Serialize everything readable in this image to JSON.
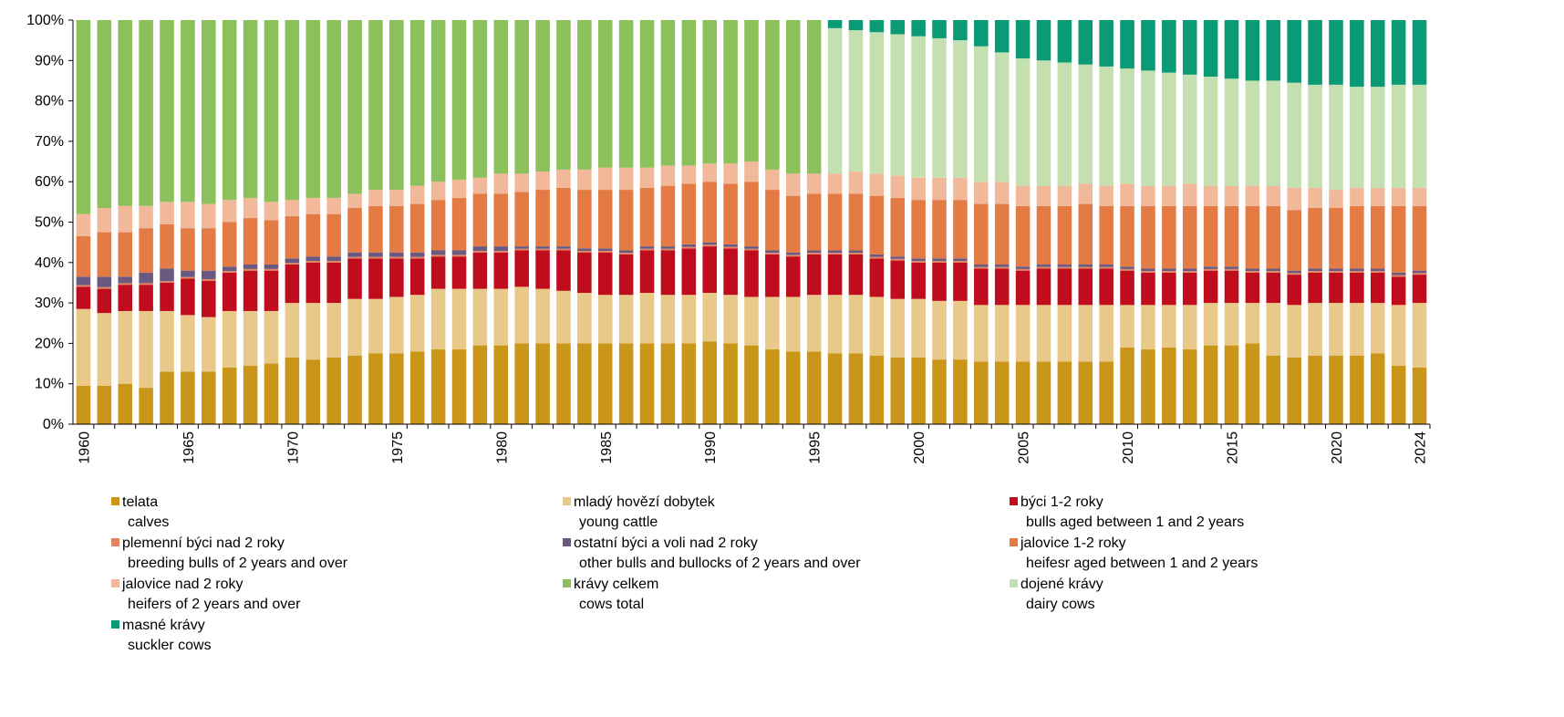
{
  "chart_data": {
    "type": "stacked_bar",
    "categories": [
      1960,
      null,
      null,
      null,
      null,
      1965,
      null,
      null,
      null,
      null,
      1970,
      null,
      null,
      null,
      null,
      1975,
      null,
      null,
      null,
      null,
      1980,
      null,
      null,
      null,
      null,
      1985,
      null,
      null,
      null,
      null,
      1990,
      null,
      null,
      null,
      null,
      1995,
      null,
      null,
      null,
      null,
      2000,
      null,
      null,
      null,
      null,
      2005,
      null,
      null,
      null,
      null,
      2010,
      null,
      null,
      null,
      null,
      2015,
      null,
      null,
      null,
      null,
      2020,
      null,
      null,
      null,
      2024
    ],
    "ylim": [
      0,
      100
    ],
    "yticks": [
      {
        "value": 0,
        "label": "0%"
      },
      {
        "value": 10,
        "label": "10%"
      },
      {
        "value": 20,
        "label": "20%"
      },
      {
        "value": 30,
        "label": "30%"
      },
      {
        "value": 40,
        "label": "40%"
      },
      {
        "value": 50,
        "label": "50%"
      },
      {
        "value": 60,
        "label": "60%"
      },
      {
        "value": 70,
        "label": "70%"
      },
      {
        "value": 80,
        "label": "80%"
      },
      {
        "value": 90,
        "label": "90%"
      },
      {
        "value": 100,
        "label": "100%"
      }
    ],
    "series": [
      {
        "name": "telata",
        "name_en": "calves",
        "color": "#c9961a",
        "values": [
          9.5,
          9.5,
          10,
          9,
          13,
          13,
          13,
          14,
          14.5,
          15,
          16.5,
          16,
          16.5,
          17,
          17.5,
          17.5,
          18,
          18.5,
          18.5,
          19.5,
          19.5,
          20,
          20,
          20,
          20,
          20,
          20,
          20,
          20,
          20,
          20.5,
          20,
          19.5,
          18.5,
          18,
          18,
          17.5,
          17.5,
          17,
          16.5,
          16.5,
          16,
          16,
          15.5,
          15.5,
          15.5,
          15.5,
          15.5,
          15.5,
          15.5,
          19,
          18.5,
          19,
          18.5,
          19.5,
          19.5,
          20,
          17,
          16.5,
          17,
          17,
          17,
          17.5,
          14.5,
          14
        ]
      },
      {
        "name": "mladý hovězí dobytek",
        "name_en": "young cattle",
        "color": "#e8c98a",
        "values": [
          19,
          18,
          18,
          19,
          15,
          14,
          13.5,
          14,
          13.5,
          13,
          13.5,
          14,
          13.5,
          14,
          13.5,
          14,
          14,
          15,
          15,
          14,
          14,
          14,
          13.5,
          13,
          12.5,
          12,
          12,
          12.5,
          12,
          12,
          12,
          12,
          12,
          13,
          13.5,
          14,
          14.5,
          14.5,
          14.5,
          14.5,
          14.5,
          14.5,
          14.5,
          14,
          14,
          14,
          14,
          14,
          14,
          14,
          10.5,
          11,
          10.5,
          11,
          10.5,
          10.5,
          10,
          13,
          13,
          13,
          13,
          13,
          12.5,
          15,
          16
        ]
      },
      {
        "name": "býci 1-2 roky",
        "name_en": "bulls aged between 1 and 2 years",
        "color": "#c00d1e",
        "values": [
          5.5,
          6,
          6.5,
          6.5,
          7,
          9,
          9,
          9.5,
          10,
          10,
          9.5,
          10,
          10,
          10,
          10,
          9.5,
          9,
          8,
          8,
          9,
          9,
          9,
          9.5,
          10,
          10,
          10.5,
          10,
          10.5,
          11,
          11.5,
          11.5,
          11.5,
          11.5,
          10.5,
          10,
          10,
          10,
          10,
          9.5,
          9.5,
          9,
          9.5,
          9.5,
          9,
          9,
          8.5,
          9,
          9,
          9,
          9,
          8.5,
          8,
          8,
          8,
          8,
          8,
          7.5,
          7.5,
          7.5,
          7.5,
          7.5,
          7.5,
          7.5,
          7,
          7
        ]
      },
      {
        "name": "plemenní býci nad 2 roky",
        "name_en": "breeding bulls of 2 years and over",
        "color": "#e2845e",
        "values": [
          0.4,
          0.4,
          0.4,
          0.4,
          0.4,
          0.4,
          0.4,
          0.4,
          0.4,
          0.4,
          0.4,
          0.4,
          0.4,
          0.4,
          0.4,
          0.4,
          0.4,
          0.4,
          0.4,
          0.4,
          0.4,
          0.4,
          0.4,
          0.4,
          0.4,
          0.4,
          0.4,
          0.4,
          0.4,
          0.4,
          0.4,
          0.4,
          0.4,
          0.4,
          0.4,
          0.4,
          0.4,
          0.4,
          0.4,
          0.4,
          0.4,
          0.4,
          0.4,
          0.4,
          0.4,
          0.4,
          0.4,
          0.4,
          0.4,
          0.4,
          0.4,
          0.4,
          0.4,
          0.4,
          0.4,
          0.4,
          0.4,
          0.4,
          0.4,
          0.4,
          0.4,
          0.4,
          0.4,
          0.4,
          0.4
        ]
      },
      {
        "name": "ostatní býci a voli nad 2 roky",
        "name_en": "other bulls and bullocks of 2 years and over",
        "color": "#6a5a82",
        "values": [
          2.1,
          2.6,
          1.6,
          2.6,
          3.1,
          1.6,
          2.1,
          1.1,
          1.1,
          1.1,
          1.1,
          1.1,
          1.1,
          1.1,
          1.1,
          1.1,
          1.1,
          1.1,
          1.1,
          1.1,
          1.1,
          0.6,
          0.6,
          0.6,
          0.6,
          0.6,
          0.6,
          0.6,
          0.6,
          0.6,
          0.6,
          0.6,
          0.6,
          0.6,
          0.6,
          0.6,
          0.6,
          0.6,
          0.6,
          0.6,
          0.6,
          0.6,
          0.6,
          0.6,
          0.6,
          0.6,
          0.6,
          0.6,
          0.6,
          0.6,
          0.6,
          0.6,
          0.6,
          0.6,
          0.6,
          0.6,
          0.6,
          0.6,
          0.6,
          0.6,
          0.6,
          0.6,
          0.6,
          0.6,
          0.6
        ]
      },
      {
        "name": "jalovice 1-2 roky",
        "name_en": "heifesr aged between 1 and 2 years",
        "color": "#e47b45",
        "values": [
          10,
          11,
          11,
          11,
          11,
          10.5,
          10.5,
          11,
          11.5,
          11,
          10.5,
          10.5,
          10.5,
          11,
          11.5,
          11.5,
          12,
          12.5,
          13,
          13,
          13,
          13.5,
          14,
          14.5,
          14.5,
          14.5,
          15,
          14.5,
          15,
          15,
          15,
          15,
          16,
          15,
          14,
          14,
          14,
          14,
          14.5,
          14.5,
          14.5,
          14.5,
          14.5,
          15,
          15,
          15,
          14.5,
          14.5,
          15,
          14.5,
          15,
          15.5,
          15.5,
          15.5,
          15,
          15,
          15.5,
          15.5,
          15,
          15,
          15,
          15.5,
          15.5,
          16.5,
          16
        ]
      },
      {
        "name": "jalovice nad 2 roky",
        "name_en": "heifers of 2 years and over",
        "color": "#f1b99a",
        "values": [
          5.5,
          6,
          6.5,
          5.5,
          5.5,
          6.5,
          6,
          5.5,
          5,
          4.5,
          4,
          4,
          4,
          3.5,
          4,
          4,
          4.5,
          4.5,
          4.5,
          4,
          5,
          4.5,
          4.5,
          4.5,
          5,
          5.5,
          5.5,
          5,
          5,
          4.5,
          4.5,
          5,
          5,
          5,
          5.5,
          5,
          5,
          5.5,
          5.5,
          5.5,
          5.5,
          5.5,
          5.5,
          5.5,
          5.5,
          5,
          5,
          5,
          5,
          5,
          5.5,
          5,
          5,
          5.5,
          5,
          5,
          5,
          5,
          5.5,
          5,
          4.5,
          4.5,
          4.5,
          4.5,
          4.5
        ]
      },
      {
        "name": "krávy celkem",
        "name_en": "cows total",
        "color": "#8cc05a",
        "values": [
          48,
          46.5,
          46,
          46,
          45,
          45,
          45.5,
          44.5,
          44,
          45,
          44.5,
          44,
          44,
          43,
          42,
          42,
          41,
          40,
          39.5,
          39,
          38,
          38,
          37.5,
          37,
          37,
          36.5,
          36.5,
          36.5,
          36,
          36,
          35.5,
          35.5,
          35,
          37,
          38,
          38,
          null,
          null,
          null,
          null,
          null,
          null,
          null,
          null,
          null,
          null,
          null,
          null,
          null,
          null,
          null,
          null,
          null,
          null,
          null,
          null,
          null,
          null,
          null,
          null,
          null,
          null,
          null,
          null,
          null
        ]
      },
      {
        "name": "dojené krávy",
        "name_en": "dairy cows",
        "color": "#c5e0b0",
        "values": [
          null,
          null,
          null,
          null,
          null,
          null,
          null,
          null,
          null,
          null,
          null,
          null,
          null,
          null,
          null,
          null,
          null,
          null,
          null,
          null,
          null,
          null,
          null,
          null,
          null,
          null,
          null,
          null,
          null,
          null,
          null,
          null,
          null,
          null,
          null,
          null,
          36,
          35,
          35,
          35,
          35,
          34.5,
          34,
          33.5,
          32,
          31.5,
          31,
          30.5,
          29.5,
          29.5,
          28.5,
          28.5,
          28,
          27,
          27,
          26.5,
          26,
          26,
          26,
          25.5,
          26,
          25,
          25,
          25.5,
          25.5
        ]
      },
      {
        "name": "masné krávy",
        "name_en": "suckler cows",
        "color": "#0b9a76",
        "values": [
          null,
          null,
          null,
          null,
          null,
          null,
          null,
          null,
          null,
          null,
          null,
          null,
          null,
          null,
          null,
          null,
          null,
          null,
          null,
          null,
          null,
          null,
          null,
          null,
          null,
          null,
          null,
          null,
          null,
          null,
          null,
          null,
          null,
          null,
          null,
          null,
          2,
          2.5,
          3,
          3.5,
          4,
          4.5,
          5,
          6.5,
          8,
          9.5,
          10,
          10.5,
          11,
          11.5,
          12,
          12.5,
          13,
          13.5,
          14,
          14.5,
          15,
          15,
          15.5,
          16,
          16,
          16.5,
          16.5,
          16,
          16
        ]
      }
    ]
  }
}
